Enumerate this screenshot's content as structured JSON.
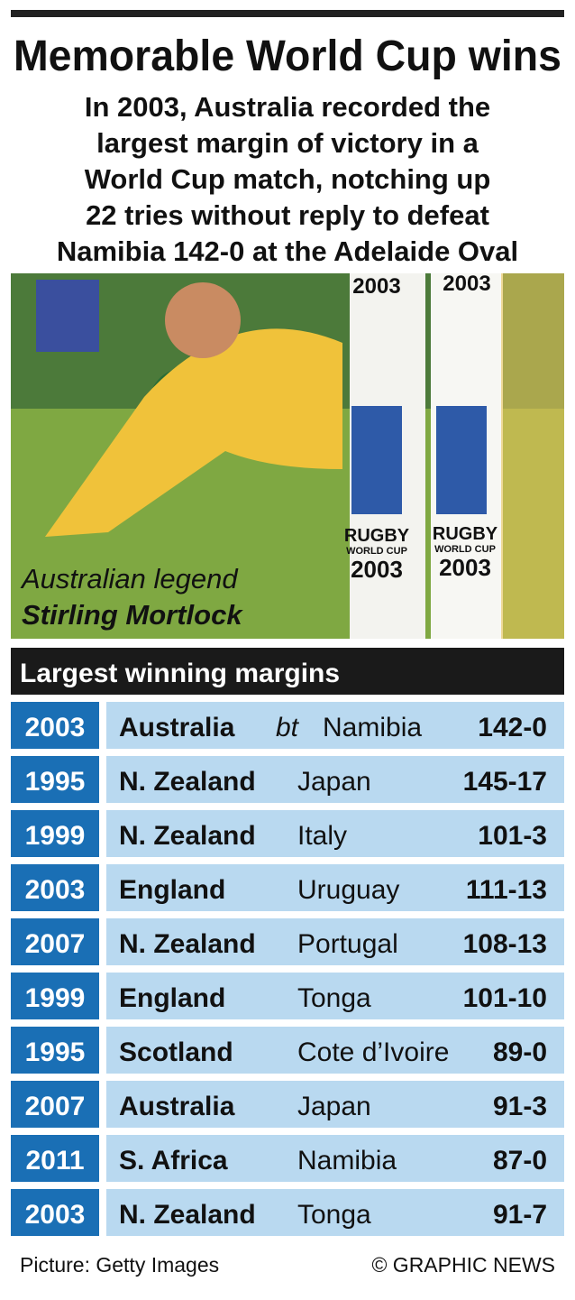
{
  "header": {
    "title": "Memorable World Cup wins",
    "subtitle": [
      "In 2003, Australia recorded the",
      "largest margin of victory in a",
      "World Cup match, notching up",
      "22 tries without reply to defeat",
      "Namibia 142-0 at the Adelaide Oval"
    ]
  },
  "photo": {
    "caption": [
      "Australian legend",
      "Stirling Mortlock"
    ],
    "signage": [
      "2003",
      "2003",
      "RUGBY",
      "WORLD CUP",
      "2003",
      "RUGBY",
      "WORLD CUP",
      "2003"
    ]
  },
  "table": {
    "title": "Largest winning margins",
    "connector": "bt",
    "rows": [
      [
        "2003",
        "Australia",
        "Namibia",
        "142-0"
      ],
      [
        "1995",
        "N. Zealand",
        "Japan",
        "145-17"
      ],
      [
        "1999",
        "N. Zealand",
        "Italy",
        "101-3"
      ],
      [
        "2003",
        "England",
        "Uruguay",
        "111-13"
      ],
      [
        "2007",
        "N. Zealand",
        "Portugal",
        "108-13"
      ],
      [
        "1999",
        "England",
        "Tonga",
        "101-10"
      ],
      [
        "1995",
        "Scotland",
        "Cote d’Ivoire",
        "89-0"
      ],
      [
        "2007",
        "Australia",
        "Japan",
        "91-3"
      ],
      [
        "2011",
        "S. Africa",
        "Namibia",
        "87-0"
      ],
      [
        "2003",
        "N. Zealand",
        "Tonga",
        "91-7"
      ]
    ]
  },
  "footer": {
    "credit": "Picture: Getty Images",
    "copyright": "© GRAPHIC NEWS"
  }
}
